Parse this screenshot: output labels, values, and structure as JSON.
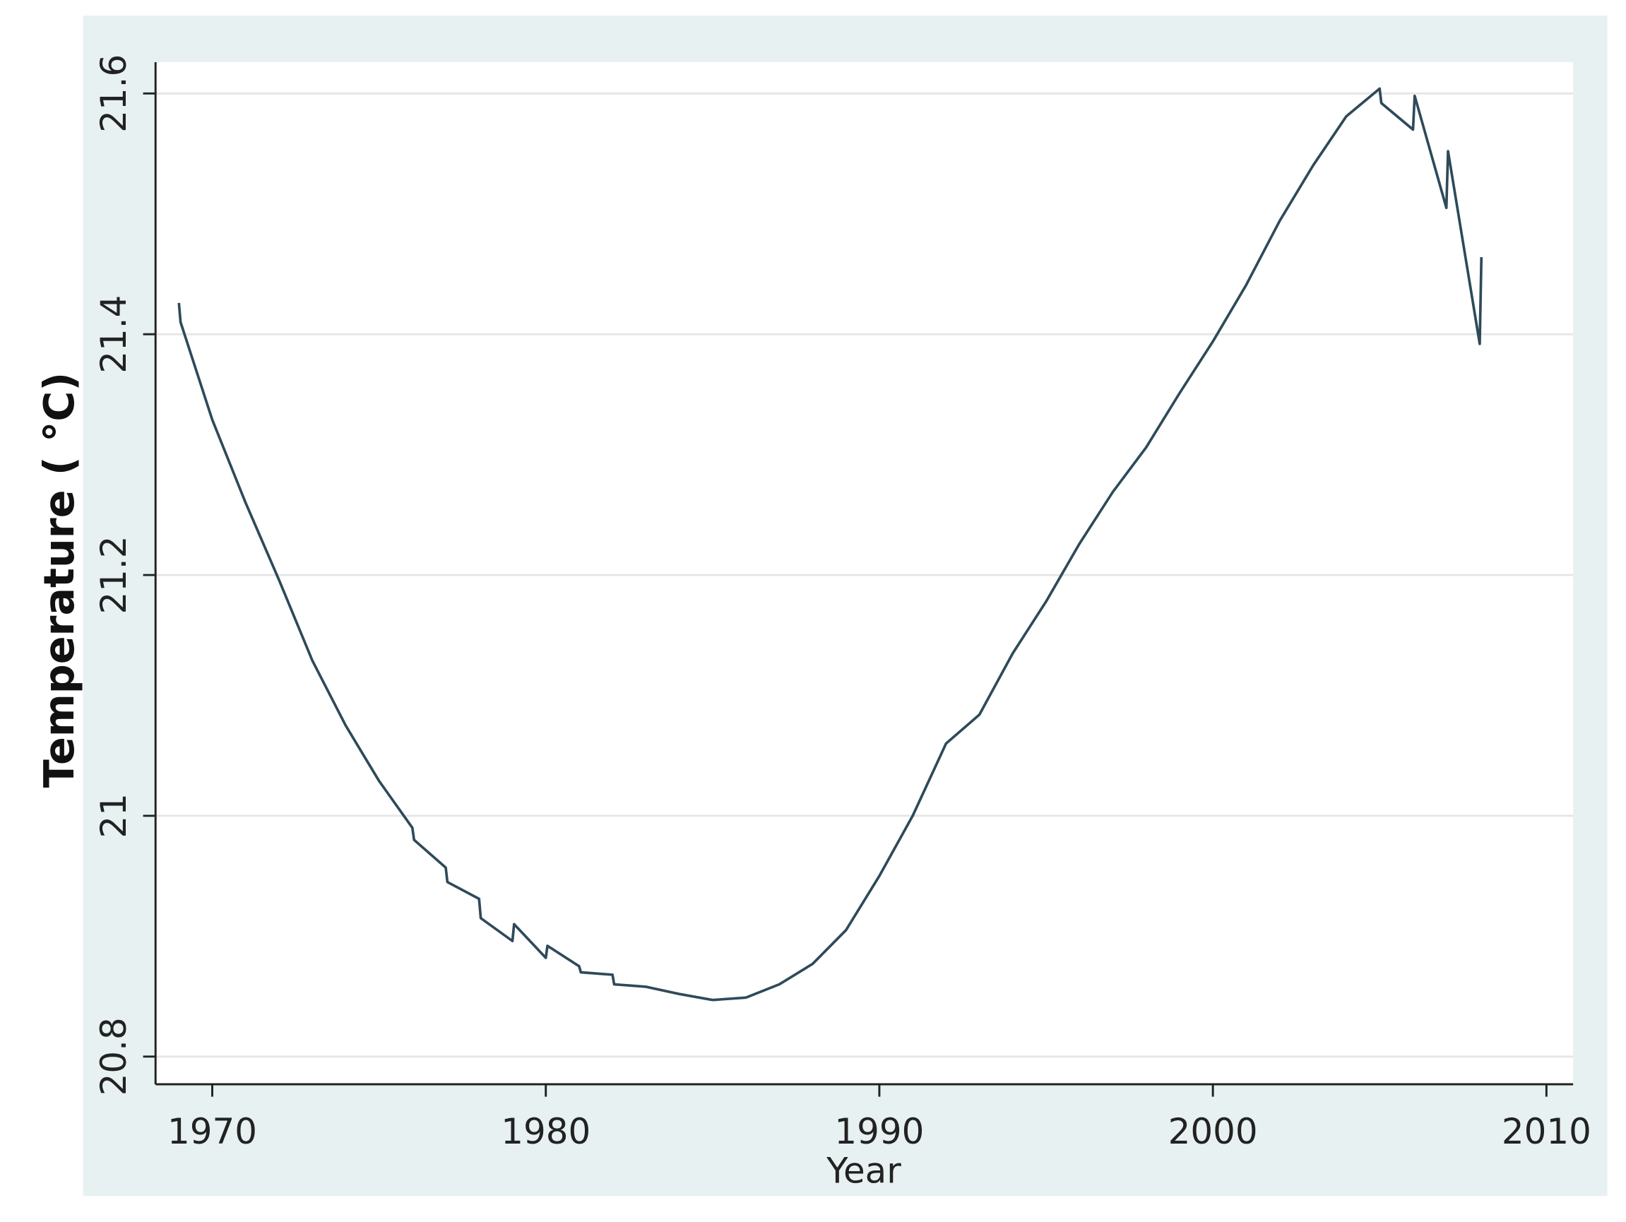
{
  "chart_data": {
    "type": "line",
    "x_label": "Year",
    "y_label": "Temperature ( °C)",
    "x": [
      1969,
      1969.05,
      1970,
      1971,
      1972,
      1973,
      1974,
      1975,
      1976,
      1976.05,
      1977,
      1977.05,
      1978,
      1978.05,
      1979,
      1979.05,
      1980,
      1980.05,
      1981,
      1981.05,
      1982,
      1982.05,
      1983,
      1984,
      1985,
      1986,
      1987,
      1988,
      1989,
      1990,
      1991,
      1992,
      1993,
      1994,
      1995,
      1996,
      1997,
      1998,
      1999,
      2000,
      2001,
      2002,
      2003,
      2004,
      2005,
      2005.05,
      2006,
      2006.05,
      2007,
      2007.05,
      2008,
      2008.05
    ],
    "series": [
      {
        "name": "Temperature",
        "color": "#2e4a5a",
        "values": [
          21.426,
          21.41,
          21.329,
          21.26,
          21.196,
          21.129,
          21.075,
          21.029,
          20.99,
          20.98,
          20.957,
          20.945,
          20.931,
          20.915,
          20.896,
          20.91,
          20.882,
          20.892,
          20.875,
          20.87,
          20.868,
          20.86,
          20.858,
          20.852,
          20.847,
          20.849,
          20.86,
          20.877,
          20.905,
          20.95,
          21.0,
          21.06,
          21.084,
          21.135,
          21.178,
          21.226,
          21.269,
          21.306,
          21.351,
          21.394,
          21.441,
          21.494,
          21.54,
          21.581,
          21.604,
          21.592,
          21.57,
          21.598,
          21.505,
          21.552,
          21.392,
          21.464
        ]
      }
    ],
    "xlim": [
      1968.3,
      2010.8
    ],
    "ylim": [
      20.777,
      21.626
    ],
    "xticks": [
      1970,
      1980,
      1990,
      2000,
      2010
    ],
    "yticks": [
      20.8,
      21,
      21.2,
      21.4,
      21.6
    ],
    "grid": true
  }
}
